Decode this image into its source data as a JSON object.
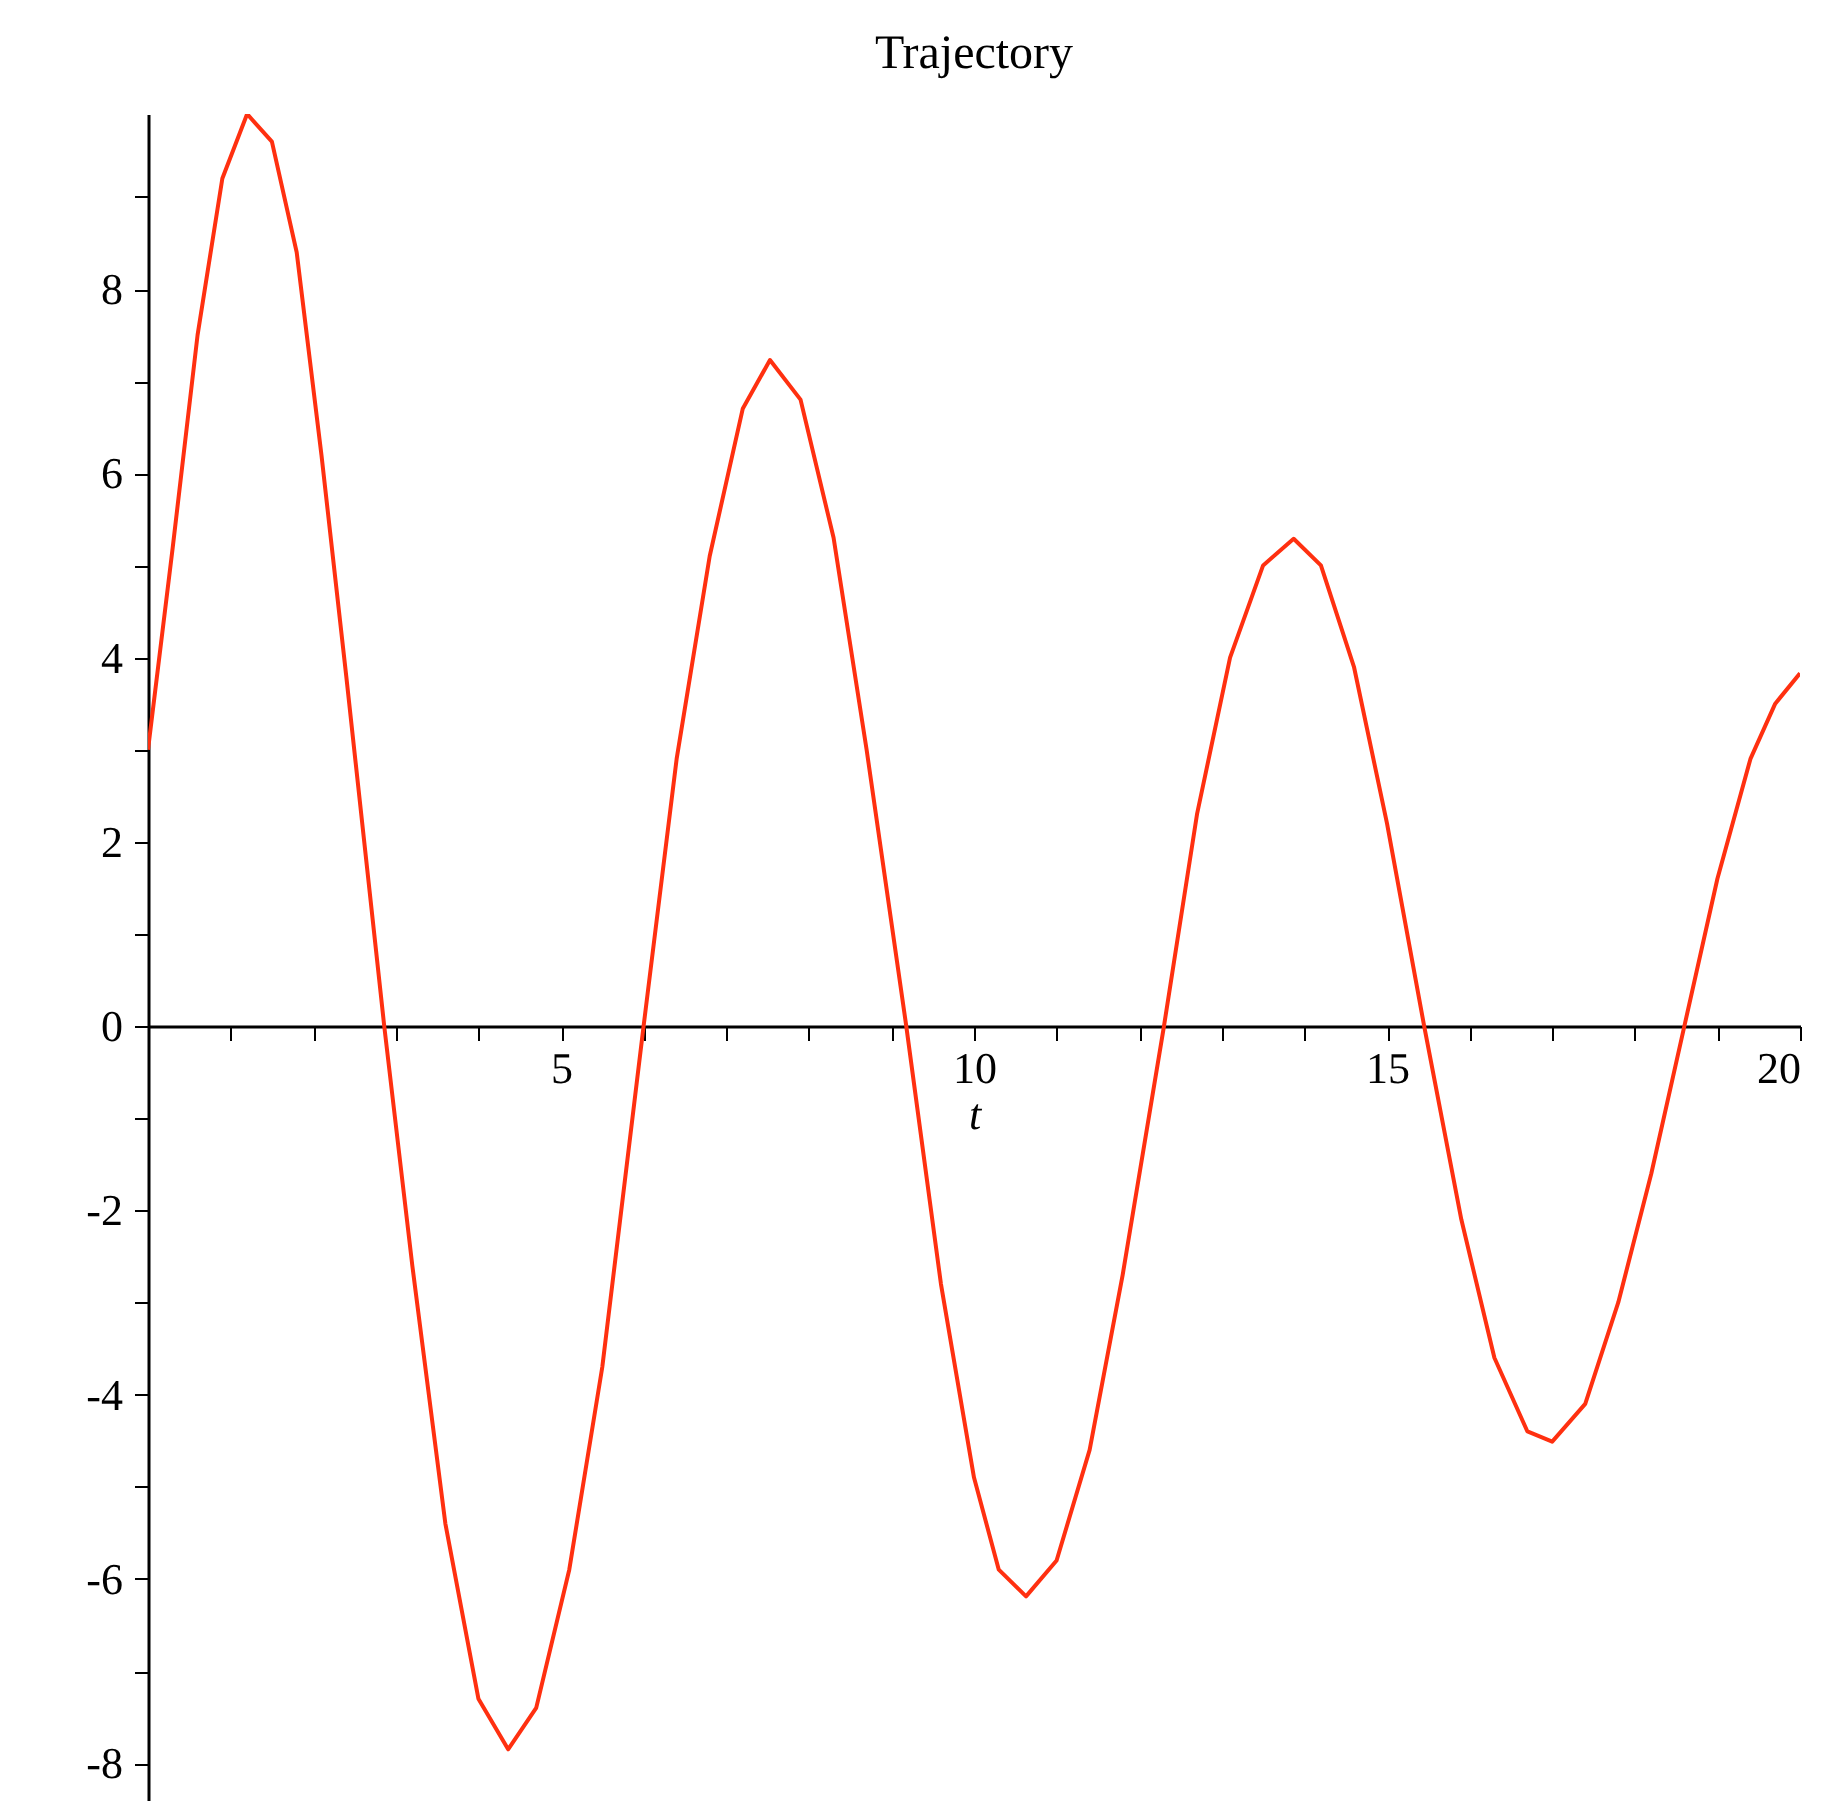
{
  "chart_data": {
    "type": "line",
    "title": "Trajectory",
    "xlabel": "t",
    "x": [
      0,
      0.3,
      0.6,
      0.9,
      1.2,
      1.5,
      1.8,
      2.1,
      2.4,
      2.86,
      3.2,
      3.6,
      4.0,
      4.36,
      4.7,
      5.1,
      5.5,
      6.0,
      6.4,
      6.8,
      7.2,
      7.53,
      7.9,
      8.3,
      8.7,
      9.18,
      9.6,
      10.0,
      10.3,
      10.63,
      11.0,
      11.4,
      11.8,
      12.3,
      12.7,
      13.1,
      13.5,
      13.87,
      14.2,
      14.6,
      15.0,
      15.45,
      15.9,
      16.3,
      16.7,
      17.0,
      17.4,
      17.8,
      18.2,
      18.6,
      19.0,
      19.4,
      19.7,
      20.0
    ],
    "series": [
      {
        "color": "#ff3010",
        "values": [
          3.0,
          5.2,
          7.5,
          9.2,
          9.9,
          9.6,
          8.4,
          6.2,
          3.8,
          0,
          -2.6,
          -5.4,
          -7.3,
          -7.85,
          -7.4,
          -5.9,
          -3.7,
          0,
          2.9,
          5.1,
          6.7,
          7.23,
          6.8,
          5.3,
          3.0,
          0,
          -2.8,
          -4.9,
          -5.9,
          -6.19,
          -5.8,
          -4.6,
          -2.7,
          0,
          2.3,
          4.0,
          5.0,
          5.29,
          5.0,
          3.9,
          2.2,
          0,
          -2.1,
          -3.6,
          -4.4,
          -4.51,
          -4.1,
          -3.0,
          -1.6,
          0,
          1.6,
          2.9,
          3.5,
          3.83
        ]
      }
    ],
    "xlim": [
      0,
      20
    ],
    "ylim": [
      -8.4,
      9.9
    ],
    "xticks": [
      {
        "value": 1,
        "label": null
      },
      {
        "value": 2,
        "label": null
      },
      {
        "value": 3,
        "label": null
      },
      {
        "value": 4,
        "label": null
      },
      5,
      {
        "value": 6,
        "label": null
      },
      {
        "value": 7,
        "label": null
      },
      {
        "value": 8,
        "label": null
      },
      {
        "value": 9,
        "label": null
      },
      10,
      {
        "value": 11,
        "label": null
      },
      {
        "value": 12,
        "label": null
      },
      {
        "value": 13,
        "label": null
      },
      {
        "value": 14,
        "label": null
      },
      15,
      {
        "value": 16,
        "label": null
      },
      {
        "value": 17,
        "label": null
      },
      {
        "value": 18,
        "label": null
      },
      {
        "value": 19,
        "label": null
      },
      20
    ],
    "yticks": [
      -8,
      {
        "value": -7,
        "label": null
      },
      -6,
      {
        "value": -5,
        "label": null
      },
      -4,
      {
        "value": -3,
        "label": null
      },
      -2,
      {
        "value": -1,
        "label": null
      },
      0,
      {
        "value": 1,
        "label": null
      },
      2,
      {
        "value": 3,
        "label": null
      },
      4,
      {
        "value": 5,
        "label": null
      },
      6,
      {
        "value": 7,
        "label": null
      },
      8,
      {
        "value": 9,
        "label": null
      }
    ],
    "grid": false,
    "marker": "none",
    "line_style": "solid"
  }
}
